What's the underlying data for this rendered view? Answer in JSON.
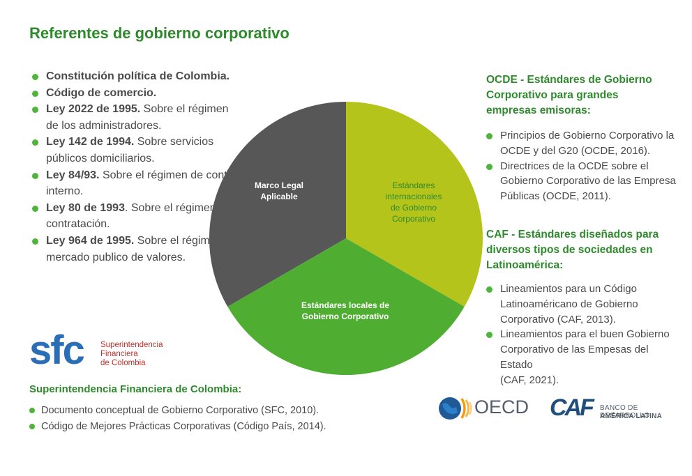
{
  "title": "Referentes de gobierno corporativo",
  "legal_list": [
    {
      "bold": "Constitución política de Colombia.",
      "rest": ""
    },
    {
      "bold": "Código de comercio.",
      "rest": ""
    },
    {
      "bold": "Ley 2022 de 1995.",
      "rest": " Sobre el régimen de los administradores."
    },
    {
      "bold": "Ley 142 de 1994.",
      "rest": " Sobre servicios públicos domiciliarios."
    },
    {
      "bold": "Ley 84/93.",
      "rest": " Sobre el régimen de control interno."
    },
    {
      "bold": "Ley 80 de 1993",
      "rest": ". Sobre el régimen de contratación."
    },
    {
      "bold": "Ley 964 de 1995.",
      "rest": " Sobre el régimen del mercado publico de valores."
    }
  ],
  "pie": {
    "segments": [
      {
        "label_lines": [
          "Marco Legal",
          "Aplicable"
        ],
        "color": "#575757"
      },
      {
        "label_lines": [
          "Estándares",
          "internacionales",
          "de Gobierno",
          "Corporativo"
        ],
        "color": "#b5c41a"
      },
      {
        "label_lines": [
          "Estándares locales de",
          "Gobierno Corporativo"
        ],
        "color": "#4fae32"
      }
    ]
  },
  "sfc": {
    "logo_letters": "sfc",
    "logo_lines": [
      "Superintendencia",
      "Financiera",
      "de Colombia"
    ],
    "title": "Superintendencia Financiera de Colombia:",
    "items": [
      "Documento conceptual de Gobierno Corporativo (SFC, 2010).",
      "Código de Mejores Prácticas Corporativas (Código País, 2014)."
    ]
  },
  "ocde": {
    "heading": "OCDE - Estándares de Gobierno Corporativo para grandes empresas emisoras:",
    "items": [
      "Principios de Gobierno Corporativo la OCDE y del G20 (OCDE, 2016).",
      "Directrices de la OCDE sobre el Gobierno Corporativo de las Empresa Públicas (OCDE, 2011)."
    ]
  },
  "caf": {
    "heading": "CAF - Estándares diseñados para diversos tipos de sociedades en Latinoamérica:",
    "items": [
      "Lineamientos para un Código Latinoaméricano de Gobierno Corporativo (CAF, 2013).",
      "Lineamientos para el buen Gobierno Corporativo de las Empesas del Estado",
      "(CAF, 2021)."
    ]
  },
  "logos": {
    "oecd": "OECD",
    "caf_mark": "CAF",
    "caf_line1": "BANCO DE DESARROLLO",
    "caf_line2": "AMÉRICA LATINA"
  }
}
